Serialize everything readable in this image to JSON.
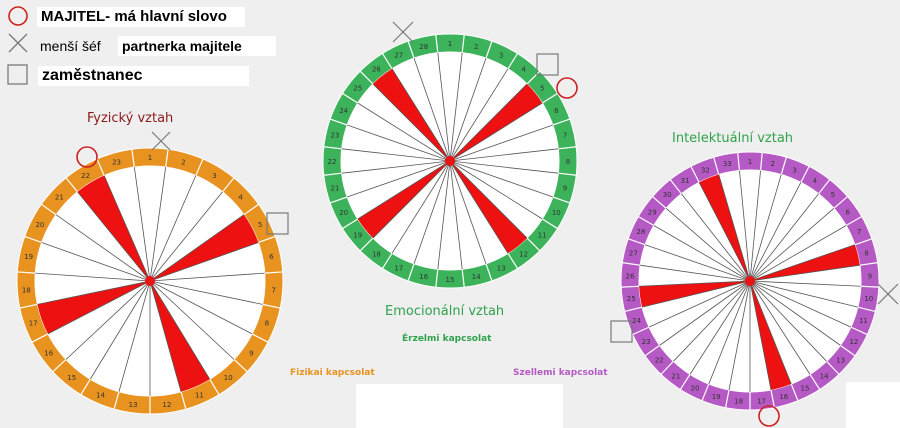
{
  "legend": {
    "owner_label": "MAJITEL- má hlavní slovo",
    "minor_boss_label": "menší šéf",
    "partner_label": "partnerka majitele",
    "employee_label": "zaměstnanec",
    "symbols": [
      "circle-icon",
      "cross-icon",
      "square-icon"
    ]
  },
  "colors": {
    "physical": "#e8921f",
    "emotional": "#3cb35a",
    "intellectual": "#b559c4",
    "sector": "#ee1111",
    "marker_circle": "#cc2222",
    "marker_gray": "#7a7a7a"
  },
  "wheels": {
    "physical": {
      "title": "Fyzický vztah",
      "subtitle": "Fizikai kapcsolat",
      "period": 23,
      "numbers": [
        "1",
        "2",
        "3",
        "4",
        "5",
        "6",
        "7",
        "8",
        "9",
        "10",
        "11",
        "12",
        "13",
        "14",
        "15",
        "16",
        "17",
        "18",
        "19",
        "20",
        "21",
        "22",
        "23"
      ],
      "highlighted": [
        5,
        11,
        17,
        22
      ]
    },
    "emotional": {
      "title": "Emocionální vztah",
      "subtitle": "Érzelmi kapcsolat",
      "period": 28,
      "numbers": [
        "1",
        "2",
        "3",
        "4",
        "5",
        "6",
        "7",
        "8",
        "9",
        "10",
        "11",
        "12",
        "13",
        "14",
        "15",
        "16",
        "17",
        "18",
        "19",
        "20",
        "21",
        "22",
        "23",
        "24",
        "25",
        "26",
        "27",
        "28"
      ],
      "highlighted": [
        5,
        12,
        19,
        26
      ]
    },
    "intellectual": {
      "title": "Intelektuální vztah",
      "subtitle": "Szellemi kapcsolat",
      "period": 33,
      "numbers": [
        "1",
        "2",
        "3",
        "4",
        "5",
        "6",
        "7",
        "8",
        "9",
        "10",
        "11",
        "12",
        "13",
        "14",
        "15",
        "16",
        "17",
        "18",
        "19",
        "20",
        "21",
        "22",
        "23",
        "24",
        "25",
        "26",
        "27",
        "28",
        "29",
        "30",
        "31",
        "32",
        "33"
      ],
      "highlighted": [
        8,
        16,
        25,
        32
      ]
    }
  }
}
